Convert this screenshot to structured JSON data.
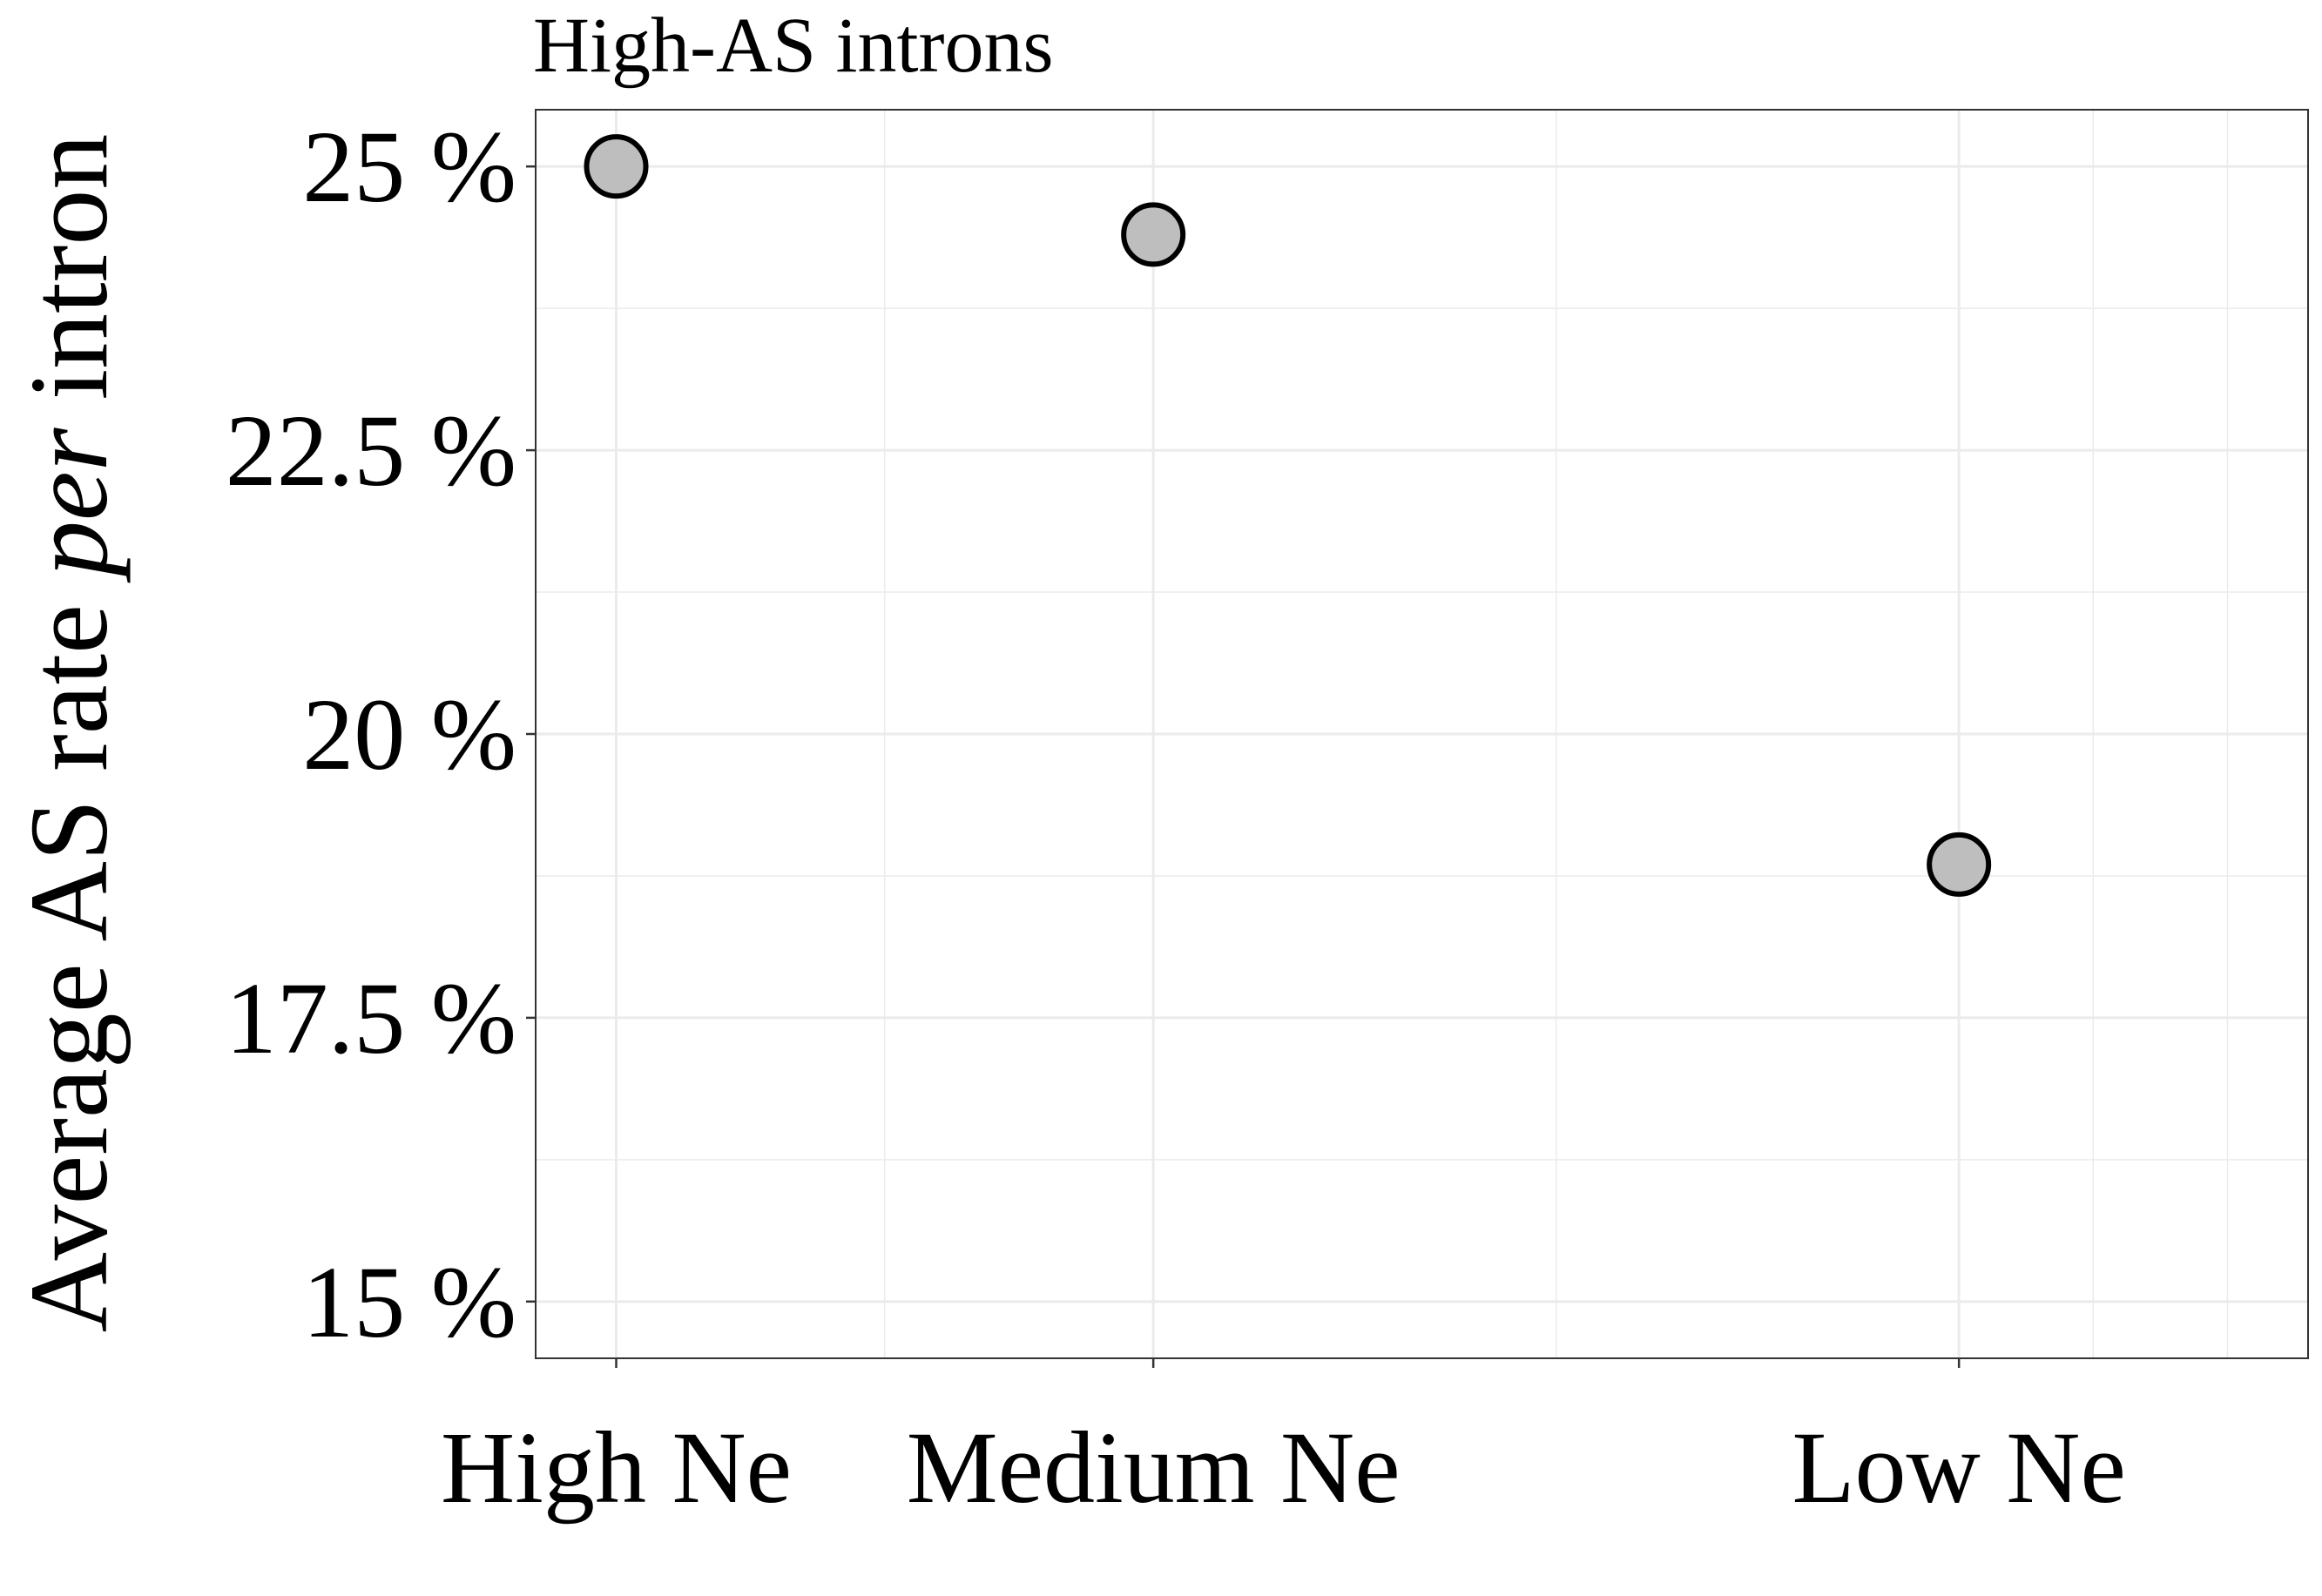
{
  "chart_data": {
    "type": "scatter",
    "title": "High-AS introns",
    "xlabel": "",
    "ylabel": {
      "prefix": "Average AS rate ",
      "italic": "per",
      "suffix": " intron"
    },
    "categories": [
      "High Ne",
      "Medium Ne",
      "Low Ne"
    ],
    "x_positions": [
      1,
      3,
      6
    ],
    "x_range": [
      0.7,
      7.3
    ],
    "series": [
      {
        "x": [
          1,
          3,
          6
        ],
        "values": [
          25.0,
          24.4,
          18.85
        ]
      }
    ],
    "ylim": [
      14.5,
      25.5
    ],
    "y_ticks": [
      15,
      17.5,
      20,
      22.5,
      25
    ],
    "y_tick_labels": [
      "15 %",
      "17.5 %",
      "20 %",
      "22.5 %",
      "25 %"
    ],
    "y_minor_ticks": [
      16.25,
      18.75,
      21.25,
      23.75
    ],
    "x_minor_ticks": [
      2,
      4.5,
      6.5,
      7
    ],
    "grid": true,
    "legend": "none",
    "colors": {
      "point_fill": "#bebebe",
      "point_stroke": "#000000",
      "grid": "#ebebeb",
      "panel_border": "#333333"
    }
  }
}
